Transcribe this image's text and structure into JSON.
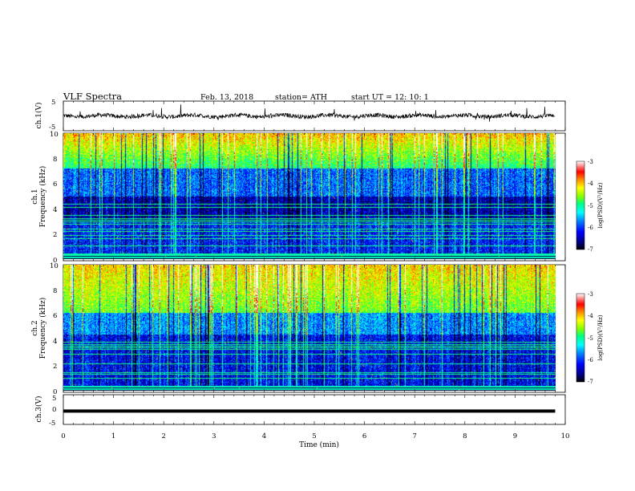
{
  "header": {
    "title": "VLF  Spectra",
    "date": "Feb. 13, 2018",
    "station": "station= ATH",
    "start": "start  UT  =    12: 10: 1"
  },
  "chart_data": {
    "type": "heatmap",
    "title": "VLF  Spectra",
    "xlabel": "Time  (min)",
    "xlim": [
      0,
      10
    ],
    "x_ticks": [
      "0",
      "1",
      "2",
      "3",
      "4",
      "5",
      "6",
      "7",
      "8",
      "9",
      "10"
    ],
    "panels": [
      {
        "name": "ch.1 waveform",
        "type": "line",
        "ylabel": "ch.1(V)",
        "ylim": [
          -5,
          5
        ],
        "y_ticks": [
          "5",
          "-5"
        ],
        "baseline": 0,
        "data_end_min": 9.8
      },
      {
        "name": "ch.1 spectrogram",
        "type": "heatmap",
        "ylabel_line1": "ch.1",
        "ylabel_line2": "Frequency  (kHz)",
        "ylim": [
          0,
          10
        ],
        "y_ticks": [
          "0",
          "2",
          "4",
          "6",
          "8",
          "10"
        ],
        "data_end_min": 9.8,
        "colorbar": {
          "label": "log(PSD)(V²/Hz)",
          "range": [
            -7,
            -3
          ],
          "ticks": [
            "-3",
            "-4",
            "-5",
            "-6",
            "-7"
          ]
        }
      },
      {
        "name": "ch.2 spectrogram",
        "type": "heatmap",
        "ylabel_line1": "ch.2",
        "ylabel_line2": "Frequency  (kHz)",
        "ylim": [
          0,
          10
        ],
        "y_ticks": [
          "0",
          "2",
          "4",
          "6",
          "8",
          "10"
        ],
        "data_end_min": 9.8,
        "colorbar": {
          "label": "log(PSD)(V²/Hz)",
          "range": [
            -7,
            -3
          ],
          "ticks": [
            "-3",
            "-4",
            "-5",
            "-6",
            "-7"
          ]
        }
      },
      {
        "name": "ch.3 waveform",
        "type": "line",
        "ylabel": "ch.3(V)",
        "ylim": [
          -5,
          5
        ],
        "y_ticks": [
          "5",
          "0",
          "-5"
        ],
        "baseline": -0.5,
        "data_end_min": 9.8
      }
    ],
    "colormap": [
      "#000000",
      "#000080",
      "#0000ff",
      "#0080ff",
      "#00ffff",
      "#00ff80",
      "#80ff00",
      "#ffff00",
      "#ff8000",
      "#ff0000",
      "#ffffff"
    ]
  }
}
